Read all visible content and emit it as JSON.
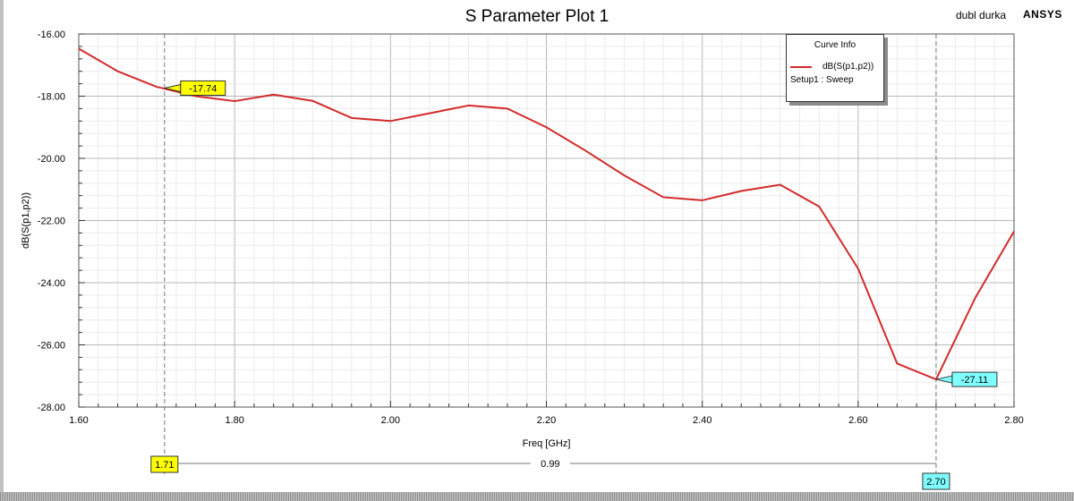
{
  "header": {
    "title": "S Parameter Plot 1",
    "project": "dubl durka",
    "brand": "ANSYS"
  },
  "legend": {
    "title": "Curve Info",
    "series_name": "dB(S(p1,p2))",
    "setup": "Setup1 : Sweep"
  },
  "colors": {
    "curve": "#d42a2a",
    "marker_left": "#ffff00",
    "marker_right": "#7fffff",
    "grid": "#cfcfcf"
  },
  "chart_data": {
    "type": "line",
    "title": "S Parameter Plot 1",
    "xlabel": "Freq [GHz]",
    "ylabel": "dB(S(p1,p2))",
    "xlim": [
      1.6,
      2.8
    ],
    "ylim": [
      -28.0,
      -16.0
    ],
    "grid": true,
    "legend_position": "top-right",
    "x_ticks": [
      "1.60",
      "1.80",
      "2.00",
      "2.20",
      "2.40",
      "2.60",
      "2.80"
    ],
    "y_ticks": [
      "-16.00",
      "-18.00",
      "-20.00",
      "-22.00",
      "-24.00",
      "-26.00",
      "-28.00"
    ],
    "series": [
      {
        "name": "dB(S(p1,p2))",
        "x": [
          1.6,
          1.65,
          1.7,
          1.75,
          1.8,
          1.85,
          1.9,
          1.95,
          2.0,
          2.05,
          2.1,
          2.15,
          2.2,
          2.25,
          2.3,
          2.35,
          2.4,
          2.45,
          2.5,
          2.55,
          2.6,
          2.65,
          2.7,
          2.75,
          2.8
        ],
        "y": [
          -16.47,
          -17.2,
          -17.7,
          -18.0,
          -18.16,
          -17.95,
          -18.15,
          -18.7,
          -18.8,
          -18.55,
          -18.3,
          -18.4,
          -19.0,
          -19.75,
          -20.55,
          -21.25,
          -21.35,
          -21.05,
          -20.85,
          -21.55,
          -23.55,
          -26.6,
          -27.11,
          -24.5,
          -22.35
        ]
      }
    ],
    "markers": [
      {
        "x": 1.71,
        "y": -17.74,
        "x_label": "1.71",
        "value_label": "-17.74"
      },
      {
        "x": 2.7,
        "y": -27.11,
        "x_label": "2.70",
        "value_label": "-27.11"
      }
    ],
    "delta_label": "0.99"
  }
}
